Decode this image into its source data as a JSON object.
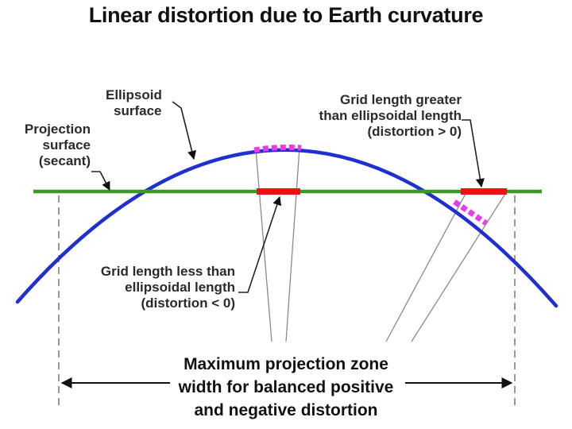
{
  "title": "Linear distortion due to Earth curvature",
  "labels": {
    "ellipsoid": [
      "Ellipsoid",
      "surface"
    ],
    "projection": [
      "Projection",
      "surface",
      "(secant)"
    ],
    "grid_greater": [
      "Grid length greater",
      "than ellipsoidal length",
      "(distortion > 0)"
    ],
    "grid_less": [
      "Grid length less than",
      "ellipsoidal length",
      "(distortion < 0)"
    ],
    "zone": [
      "Maximum projection zone",
      "width for balanced positive",
      "and negative distortion"
    ]
  },
  "colors": {
    "ellipsoid": "#1f2fd0",
    "projection": "#3a9a22",
    "grid_segment": "#ee1111",
    "ellipsoid_segment": "#e83ce8",
    "leader": "#222222",
    "ray": "#8a8a8a"
  }
}
